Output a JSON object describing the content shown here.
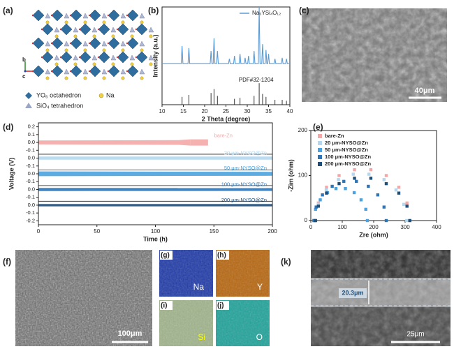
{
  "panel_labels": [
    "(a)",
    "(b)",
    "(c)",
    "(d)",
    "(e)",
    "(f)",
    "(g)",
    "(h)",
    "(i)",
    "(j)",
    "(k)"
  ],
  "structure": {
    "axes": [
      "b",
      "a",
      "c"
    ],
    "legend": [
      "YO₆ octahedron",
      "Na",
      "SiO₄ tetrahedron"
    ]
  },
  "sem": {
    "c_scale": "40μm",
    "f_scale": "100μm",
    "maps": [
      "Na",
      "Y",
      "Si",
      "O"
    ],
    "k_thickness": "20.3μm",
    "k_scale": "25μm"
  },
  "chart_data": [
    {
      "type": "line",
      "xlabel": "2 Theta (degree)",
      "ylabel": "Intensity (a.u.)",
      "xlim": [
        10,
        40
      ],
      "xticks": [
        10,
        15,
        20,
        25,
        30,
        35,
        40
      ],
      "ylim": [
        0,
        100
      ],
      "legend": "upper right",
      "x": [
        10,
        14.5,
        14.7,
        14.9,
        16.1,
        16.3,
        16.5,
        21.3,
        21.5,
        21.7,
        22.0,
        22.2,
        22.4,
        22.8,
        23.0,
        23.2,
        25.6,
        25.8,
        26.0,
        26.8,
        27.0,
        27.2,
        28.1,
        28.3,
        28.5,
        29.3,
        29.5,
        29.7,
        30.1,
        30.3,
        30.5,
        31.4,
        31.6,
        31.8,
        32.6,
        32.8,
        33.0,
        33.4,
        33.6,
        33.8,
        34.2,
        34.4,
        34.6,
        34.8,
        35.0,
        35.2,
        36.3,
        36.5,
        36.7,
        38.0,
        38.2,
        38.4,
        39.0,
        39.2,
        39.4,
        40
      ],
      "series": [
        {
          "name": "Na₅YSi₄O₁₂",
          "color": "#5b9bd5",
          "values": [
            42,
            42,
            60,
            42,
            42,
            58,
            42,
            42,
            55,
            42,
            42,
            68,
            42,
            42,
            55,
            42,
            42,
            47,
            42,
            42,
            50,
            42,
            42,
            52,
            42,
            42,
            48,
            42,
            42,
            50,
            42,
            42,
            55,
            42,
            42,
            100,
            42,
            42,
            62,
            42,
            42,
            56,
            42,
            42,
            52,
            42,
            42,
            47,
            42,
            42,
            48,
            42,
            42,
            47,
            42,
            42
          ]
        }
      ],
      "reference": {
        "name": "PDF#32-1204",
        "color": "#333333",
        "x": [
          14.7,
          16.3,
          21.5,
          22.2,
          23.0,
          27.0,
          28.3,
          31.6,
          32.8,
          33.6,
          34.4,
          36.5,
          38.2,
          39.2
        ],
        "values": [
          8,
          10,
          12,
          16,
          9,
          6,
          7,
          9,
          22,
          11,
          8,
          5,
          5,
          4
        ]
      }
    },
    {
      "type": "band",
      "xlabel": "Time (h)",
      "ylabel": "Voltage (V)",
      "xlim": [
        0,
        200
      ],
      "xticks": [
        0,
        50,
        100,
        150,
        200
      ],
      "series": [
        {
          "name": "bare-Zn",
          "color": "#f4a7a7",
          "ylim": [
            -0.15,
            0.25
          ],
          "yticks": [
            0.2,
            0.1,
            {
              "value": 0,
              "label": "0.0"
            },
            -0.1
          ],
          "x": [
            0,
            120,
            130,
            145
          ],
          "upper": [
            0.025,
            0.03,
            0.04,
            0.04
          ],
          "lower": [
            -0.025,
            -0.03,
            -0.04,
            -0.04
          ]
        },
        {
          "name": "20 μm-NYSO@Zn",
          "color": "#b3d7ee",
          "ylim": [
            -0.15,
            0.05
          ],
          "yticks": [
            {
              "value": 0,
              "label": "0.0"
            },
            -0.1
          ],
          "x": [
            0,
            200
          ],
          "upper": [
            0.02,
            0.02
          ],
          "lower": [
            -0.02,
            -0.02
          ]
        },
        {
          "name": "50 μm-NYSO@Zn",
          "color": "#4aa3df",
          "ylim": [
            -0.15,
            0.05
          ],
          "yticks": [
            {
              "value": 0,
              "label": "0.0"
            },
            -0.1
          ],
          "x": [
            0,
            200
          ],
          "upper": [
            0.03,
            0.025
          ],
          "lower": [
            -0.03,
            -0.025
          ]
        },
        {
          "name": "100 μm-NYSO@Zn",
          "color": "#2e75b6",
          "ylim": [
            -0.15,
            0.05
          ],
          "yticks": [
            {
              "value": 0,
              "label": "0.0"
            },
            -0.1
          ],
          "x": [
            0,
            200
          ],
          "upper": [
            0.02,
            0.018
          ],
          "lower": [
            -0.02,
            -0.018
          ]
        },
        {
          "name": "200 μm-NYSO@Zn",
          "color": "#1f4e79",
          "ylim": [
            -0.25,
            0.05
          ],
          "yticks": [
            {
              "value": 0,
              "label": "0.0"
            },
            -0.1,
            -0.2
          ],
          "x": [
            0,
            200
          ],
          "upper": [
            0.015,
            0.015
          ],
          "lower": [
            -0.015,
            -0.015
          ]
        }
      ]
    },
    {
      "type": "scatter",
      "xlabel": "Zre (ohm)",
      "ylabel": "-Zim (ohm)",
      "xlim": [
        0,
        400
      ],
      "xticks": [
        0,
        100,
        200,
        300,
        400
      ],
      "ylim": [
        0,
        200
      ],
      "yticks": [
        0,
        100,
        200
      ],
      "legend": "upper left",
      "series": [
        {
          "name": "bare-Zn",
          "color": "#f4a7a7",
          "x": [
            15,
            24,
            50,
            90,
            139,
            191,
            240,
            280,
            306,
            315
          ],
          "values": [
            0,
            39,
            74,
            100,
            113,
            113,
            100,
            74,
            39,
            0
          ]
        },
        {
          "name": "20 μm-NYSO@Zn",
          "color": "#b3d7ee",
          "x": [
            15,
            24,
            49,
            88,
            135,
            185,
            233,
            271,
            296,
            305
          ],
          "values": [
            0,
            36,
            68,
            91,
            103,
            103,
            91,
            68,
            36,
            0
          ]
        },
        {
          "name": "50 μm-NYSO@Zn",
          "color": "#4aa3df",
          "x": [
            10,
            15,
            30,
            53,
            80,
            110,
            138,
            160,
            175,
            180
          ],
          "values": [
            0,
            25,
            46,
            62,
            71,
            71,
            62,
            46,
            25,
            0
          ]
        },
        {
          "name": "100 μm-NYSO@Zn",
          "color": "#2e75b6",
          "x": [
            10,
            17,
            37,
            68,
            105,
            145,
            183,
            213,
            233,
            240
          ],
          "values": [
            0,
            30,
            57,
            76,
            87,
            87,
            76,
            57,
            30,
            0
          ]
        },
        {
          "name": "200 μm-NYSO@Zn",
          "color": "#1f4e79",
          "x": [
            15,
            24,
            50,
            90,
            139,
            191,
            240,
            280,
            306,
            315
          ],
          "values": [
            0,
            32,
            61,
            82,
            94,
            94,
            82,
            61,
            32,
            0
          ]
        }
      ]
    }
  ]
}
